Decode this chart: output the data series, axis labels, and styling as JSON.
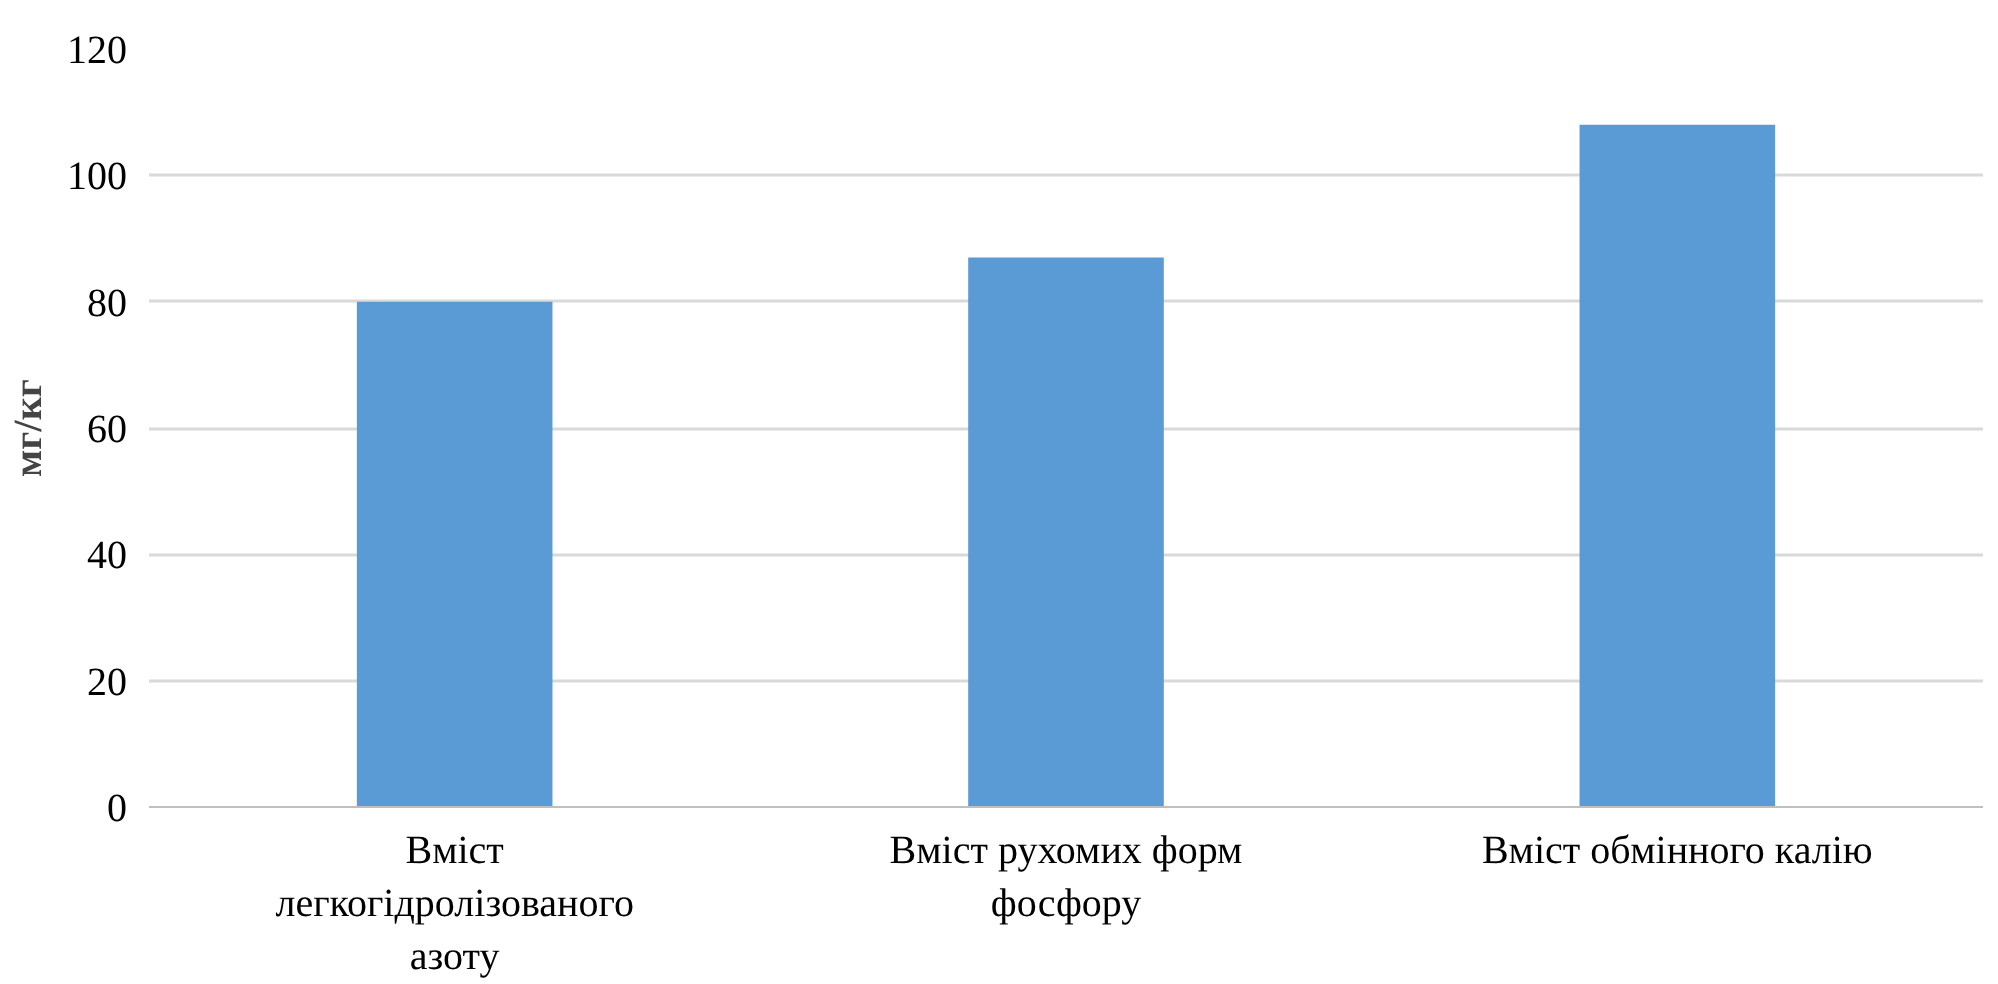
{
  "chart_data": {
    "type": "bar",
    "ylabel": "мг/кг",
    "categories": [
      "Вміст легкогідролізованого азоту",
      "Вміст рухомих форм фосфору",
      "Вміст обмінного калію"
    ],
    "values": [
      80,
      87,
      108
    ],
    "color": "#5b9bd5",
    "ylim": [
      0,
      120
    ],
    "yticks": [
      0,
      20,
      40,
      60,
      80,
      100,
      120
    ],
    "grid": "y"
  }
}
